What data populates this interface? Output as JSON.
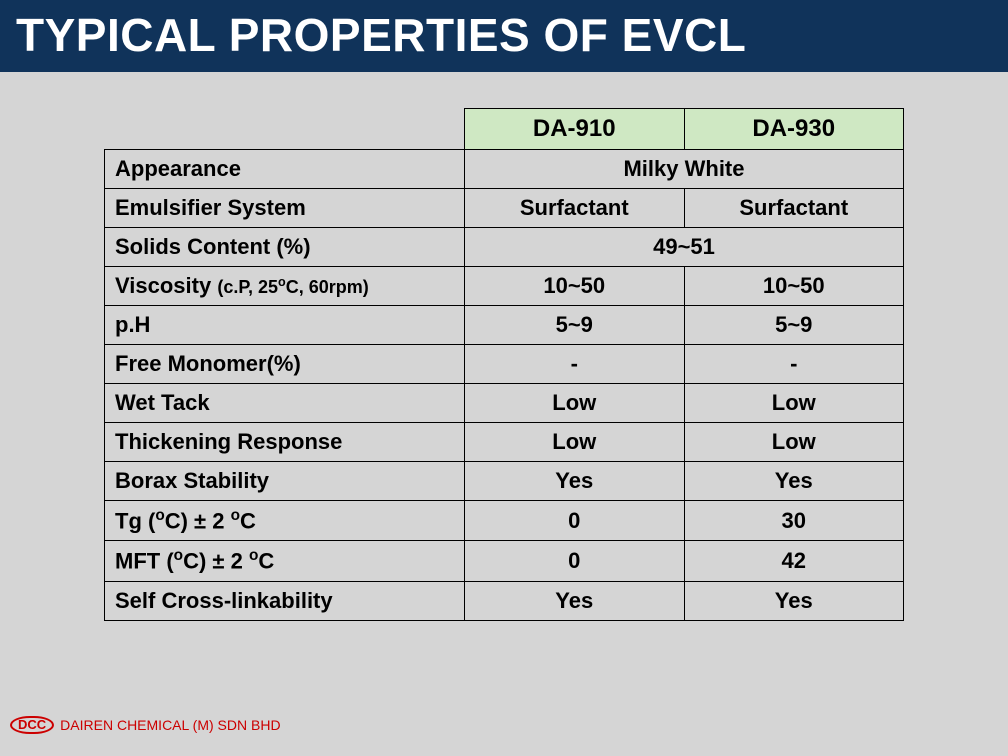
{
  "title": "TYPICAL PROPERTIES OF EVCL",
  "colors": {
    "title_bg": "#10335a",
    "title_text": "#ffffff",
    "page_bg": "#d5d5d5",
    "header_bg": "#cfe8c3",
    "border": "#000000",
    "footer_text": "#cc0000"
  },
  "table": {
    "product_headers": [
      "DA-910",
      "DA-930"
    ],
    "rows": [
      {
        "label": "Appearance",
        "merged": true,
        "value": "Milky White"
      },
      {
        "label": "Emulsifier System",
        "values": [
          "Surfactant",
          "Surfactant"
        ]
      },
      {
        "label": "Solids Content (%)",
        "merged": true,
        "value": "49~51"
      },
      {
        "label_html": "Viscosity <span class=\"sub\">(c.P, 25<sup class=\"deg\">o</sup>C, 60rpm)</span>",
        "values": [
          "10~50",
          "10~50"
        ]
      },
      {
        "label": "p.H",
        "values": [
          "5~9",
          "5~9"
        ]
      },
      {
        "label": "Free Monomer(%)",
        "values": [
          "-",
          "-"
        ]
      },
      {
        "label": "Wet Tack",
        "values": [
          "Low",
          "Low"
        ]
      },
      {
        "label": "Thickening Response",
        "values": [
          "Low",
          "Low"
        ]
      },
      {
        "label": "Borax Stability",
        "values": [
          "Yes",
          "Yes"
        ]
      },
      {
        "label_html": "Tg (<sup class=\"deg\">o</sup>C) ± 2 <sup class=\"deg\">o</sup>C",
        "values": [
          "0",
          "30"
        ]
      },
      {
        "label_html": "MFT (<sup class=\"deg\">o</sup>C) ± 2 <sup class=\"deg\">o</sup>C",
        "values": [
          "0",
          "42"
        ]
      },
      {
        "label": "Self Cross-linkability",
        "values": [
          "Yes",
          "Yes"
        ]
      }
    ]
  },
  "footer": {
    "logo_text": "DCC",
    "company": "DAIREN CHEMICAL (M) SDN BHD"
  }
}
